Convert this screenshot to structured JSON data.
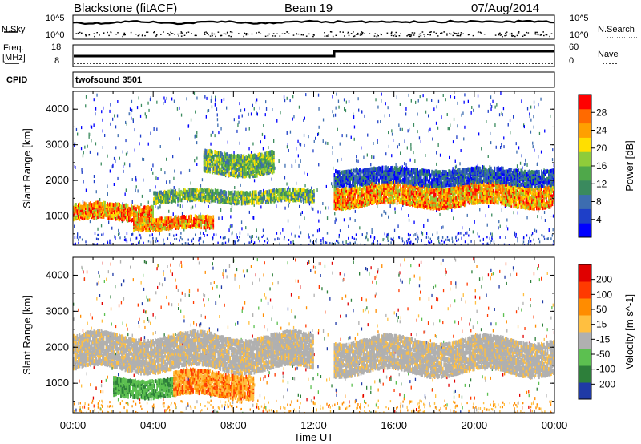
{
  "header": {
    "station": "Blackstone (fitACF)",
    "beam": "Beam 19",
    "date": "07/Aug/2014"
  },
  "status_panels": {
    "nsky_label": "N.Sky",
    "nsearch_label": "N.Search",
    "noise_ticks": [
      "10^5",
      "10^0"
    ],
    "freq_label_1": "Freq.",
    "freq_label_2": "[MHz]",
    "freq_ticks": [
      "18",
      "8"
    ],
    "nave_label": "Nave",
    "nave_ticks": [
      "60",
      "0"
    ],
    "cpid_label": "CPID",
    "cpid_value": "twofsound 3501"
  },
  "chart_data": [
    {
      "type": "heatmap",
      "title": "Power",
      "ylabel": "Slant Range [km]",
      "colorbar_label": "Power [dB]",
      "colorbar_ticks": [
        "28",
        "24",
        "20",
        "16",
        "12",
        "8",
        "4"
      ],
      "colorbar_colors": [
        "#0000ff",
        "#1e3fc8",
        "#3d6db0",
        "#3a8a5e",
        "#4fa84a",
        "#8fcc3a",
        "#ffdf00",
        "#ffa000",
        "#ff6a00",
        "#ff0000"
      ],
      "ylim": [
        180,
        4500
      ],
      "y_ticks": [
        "1000",
        "2000",
        "3000",
        "4000"
      ],
      "xlim": [
        "00:00",
        "00:00"
      ],
      "echo_bands": [
        {
          "t_start": 0,
          "t_end": 4,
          "range_lo": 900,
          "range_hi": 1300,
          "level": "high"
        },
        {
          "t_start": 3,
          "t_end": 7,
          "range_lo": 650,
          "range_hi": 950,
          "level": "high"
        },
        {
          "t_start": 4,
          "t_end": 12,
          "range_lo": 1400,
          "range_hi": 1700,
          "level": "mid"
        },
        {
          "t_start": 6.5,
          "t_end": 10,
          "range_lo": 2200,
          "range_hi": 2800,
          "level": "mid"
        },
        {
          "t_start": 13,
          "t_end": 24,
          "range_lo": 1300,
          "range_hi": 1900,
          "level": "high"
        },
        {
          "t_start": 13,
          "t_end": 24,
          "range_lo": 1900,
          "range_hi": 2300,
          "level": "low"
        }
      ]
    },
    {
      "type": "heatmap",
      "title": "Velocity",
      "ylabel": "Slant Range [km]",
      "xlabel": "Time UT",
      "colorbar_label": "Velocity [m s^-1]",
      "colorbar_ticks": [
        "200",
        "100",
        "50",
        "15",
        "-15",
        "-50",
        "-100",
        "-200"
      ],
      "colorbar_colors": [
        "#1f3aa6",
        "#2d7f3a",
        "#5cc050",
        "#b0b0b0",
        "#ffbf40",
        "#ff8c00",
        "#ff3a00",
        "#e00000"
      ],
      "ylim": [
        180,
        4500
      ],
      "y_ticks": [
        "1000",
        "2000",
        "3000",
        "4000"
      ],
      "x_ticks": [
        "00:00",
        "04:00",
        "08:00",
        "12:00",
        "16:00",
        "20:00",
        "00:00"
      ],
      "echo_bands": [
        {
          "t_start": 0,
          "t_end": 12,
          "range_lo": 1400,
          "range_hi": 2300,
          "level": "ground"
        },
        {
          "t_start": 2,
          "t_end": 5,
          "range_lo": 650,
          "range_hi": 1100,
          "level": "positive"
        },
        {
          "t_start": 5,
          "t_end": 9,
          "range_lo": 650,
          "range_hi": 1300,
          "level": "negative"
        },
        {
          "t_start": 13,
          "t_end": 24,
          "range_lo": 1300,
          "range_hi": 2200,
          "level": "ground"
        }
      ]
    }
  ]
}
